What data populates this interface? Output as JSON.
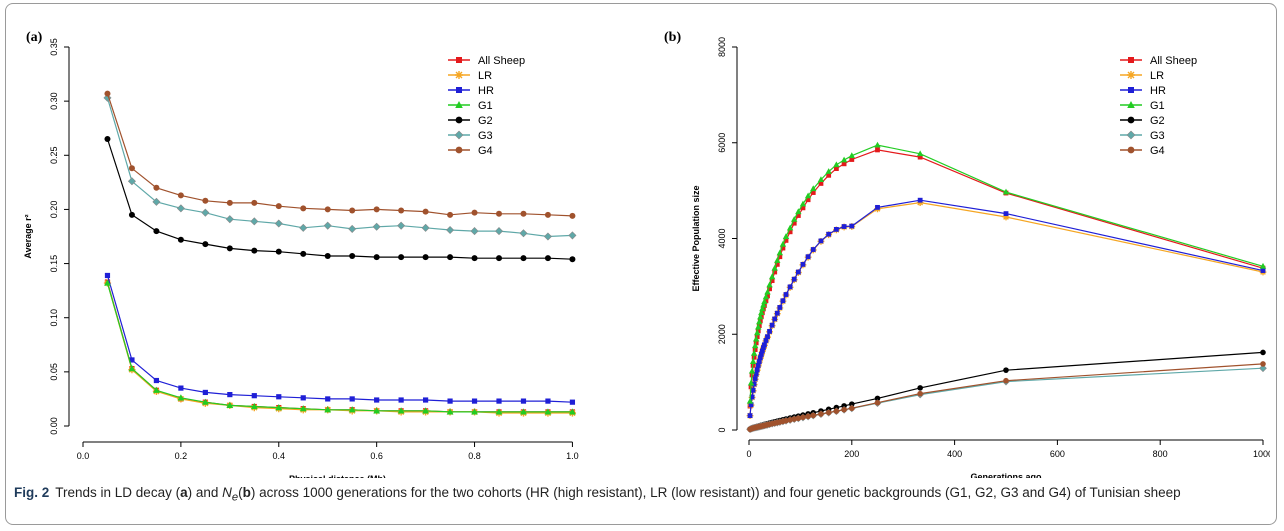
{
  "caption": {
    "fig_label": "Fig. 2",
    "t1": "Trends in LD decay (",
    "a": "a",
    "t2": ") and ",
    "ne_n": "N",
    "ne_e": "e",
    "t3": "(",
    "b": "b",
    "t4": ") across 1000 generations for the two cohorts (HR (high resistant), LR (low resistant)) and four genetic backgrounds (G1, G2, G3 and G4) of Tunisian sheep"
  },
  "chart_data": [
    {
      "panel_label": "(a)",
      "type": "line",
      "xlabel": "Physical distance (Mb)",
      "ylabel": "Average r²",
      "xlim": [
        0,
        1.04
      ],
      "ylim": [
        0,
        0.35
      ],
      "xticks": [
        0.0,
        0.2,
        0.4,
        0.6,
        0.8,
        1.0
      ],
      "xtick_labels": [
        "0.0",
        "0.2",
        "0.4",
        "0.6",
        "0.8",
        "1.0"
      ],
      "yticks": [
        0.0,
        0.05,
        0.1,
        0.15,
        0.2,
        0.25,
        0.3,
        0.35
      ],
      "ytick_labels": [
        "0.00",
        "0.05",
        "0.10",
        "0.15",
        "0.20",
        "0.25",
        "0.30",
        "0.35"
      ],
      "legend_position": "top-right",
      "x": [
        0.05,
        0.1,
        0.15,
        0.2,
        0.25,
        0.3,
        0.35,
        0.4,
        0.45,
        0.5,
        0.55,
        0.6,
        0.65,
        0.7,
        0.75,
        0.8,
        0.85,
        0.9,
        0.95,
        1.0
      ],
      "series": [
        {
          "name": "All Sheep",
          "color": "#e41a1c",
          "marker": "square",
          "values": [
            0.133,
            0.053,
            0.033,
            0.025,
            0.022,
            0.019,
            0.018,
            0.017,
            0.016,
            0.015,
            0.015,
            0.014,
            0.014,
            0.014,
            0.013,
            0.013,
            0.013,
            0.013,
            0.013,
            0.013
          ]
        },
        {
          "name": "LR",
          "color": "#f5a623",
          "marker": "star",
          "values": [
            0.132,
            0.052,
            0.032,
            0.025,
            0.021,
            0.019,
            0.017,
            0.016,
            0.015,
            0.015,
            0.014,
            0.014,
            0.013,
            0.013,
            0.013,
            0.013,
            0.012,
            0.012,
            0.012,
            0.012
          ]
        },
        {
          "name": "HR",
          "color": "#1f1fd6",
          "marker": "square",
          "values": [
            0.139,
            0.061,
            0.042,
            0.035,
            0.031,
            0.029,
            0.028,
            0.027,
            0.026,
            0.025,
            0.025,
            0.024,
            0.024,
            0.024,
            0.023,
            0.023,
            0.023,
            0.023,
            0.023,
            0.022
          ]
        },
        {
          "name": "G1",
          "color": "#22cc22",
          "marker": "triangle",
          "values": [
            0.132,
            0.053,
            0.033,
            0.026,
            0.022,
            0.019,
            0.018,
            0.017,
            0.016,
            0.015,
            0.015,
            0.014,
            0.014,
            0.014,
            0.013,
            0.013,
            0.013,
            0.013,
            0.013,
            0.013
          ]
        },
        {
          "name": "G2",
          "color": "#000000",
          "marker": "circle",
          "values": [
            0.265,
            0.195,
            0.18,
            0.172,
            0.168,
            0.164,
            0.162,
            0.161,
            0.159,
            0.157,
            0.157,
            0.156,
            0.156,
            0.156,
            0.156,
            0.155,
            0.155,
            0.155,
            0.155,
            0.154
          ]
        },
        {
          "name": "G3",
          "color": "#5fa8a8",
          "marker": "diamond",
          "values": [
            0.303,
            0.226,
            0.207,
            0.201,
            0.197,
            0.191,
            0.189,
            0.187,
            0.183,
            0.185,
            0.182,
            0.184,
            0.185,
            0.183,
            0.181,
            0.18,
            0.18,
            0.178,
            0.175,
            0.176
          ]
        },
        {
          "name": "G4",
          "color": "#a0522d",
          "marker": "circle",
          "values": [
            0.307,
            0.238,
            0.22,
            0.213,
            0.208,
            0.206,
            0.206,
            0.203,
            0.201,
            0.2,
            0.199,
            0.2,
            0.199,
            0.198,
            0.195,
            0.197,
            0.196,
            0.196,
            0.195,
            0.194
          ]
        }
      ]
    },
    {
      "panel_label": "(b)",
      "type": "line",
      "xlabel": "Generations ago",
      "ylabel": "Effective Population size",
      "xlim": [
        0,
        1000
      ],
      "ylim": [
        0,
        8000
      ],
      "xticks": [
        0,
        200,
        400,
        600,
        800,
        1000
      ],
      "xtick_labels": [
        "0",
        "200",
        "400",
        "600",
        "800",
        "1000"
      ],
      "yticks": [
        0,
        2000,
        4000,
        6000,
        8000
      ],
      "ytick_labels": [
        "0",
        "2000",
        "4000",
        "6000",
        "8000"
      ],
      "legend_position": "top-right",
      "series": [
        {
          "name": "All Sheep",
          "color": "#e41a1c",
          "marker": "square",
          "x": [
            2,
            4,
            6,
            8,
            10,
            12,
            14,
            16,
            18,
            20,
            22,
            24,
            26,
            28,
            30,
            33,
            36,
            40,
            45,
            50,
            55,
            60,
            66,
            72,
            80,
            88,
            96,
            105,
            115,
            125,
            140,
            155,
            170,
            185,
            200,
            250,
            333,
            500,
            1000
          ],
          "values": [
            500,
            900,
            1150,
            1350,
            1520,
            1680,
            1820,
            1950,
            2070,
            2180,
            2280,
            2370,
            2450,
            2530,
            2600,
            2700,
            2800,
            2950,
            3120,
            3300,
            3460,
            3620,
            3800,
            3960,
            4140,
            4320,
            4480,
            4640,
            4810,
            4960,
            5150,
            5320,
            5460,
            5560,
            5650,
            5850,
            5700,
            4950,
            3380
          ]
        },
        {
          "name": "LR",
          "color": "#f5a623",
          "marker": "star",
          "x": [
            2,
            4,
            6,
            8,
            10,
            12,
            14,
            16,
            18,
            20,
            22,
            24,
            26,
            28,
            30,
            33,
            36,
            40,
            45,
            50,
            55,
            60,
            66,
            72,
            80,
            88,
            96,
            105,
            115,
            125,
            140,
            155,
            170,
            185,
            200,
            250,
            333,
            500,
            1000
          ],
          "values": [
            300,
            520,
            680,
            820,
            950,
            1060,
            1160,
            1250,
            1340,
            1420,
            1500,
            1570,
            1640,
            1710,
            1770,
            1860,
            1940,
            2050,
            2180,
            2310,
            2430,
            2550,
            2690,
            2820,
            2980,
            3140,
            3290,
            3450,
            3610,
            3760,
            3940,
            4080,
            4180,
            4240,
            4250,
            4620,
            4750,
            4450,
            3300
          ]
        },
        {
          "name": "HR",
          "color": "#1f1fd6",
          "marker": "square",
          "x": [
            2,
            4,
            6,
            8,
            10,
            12,
            14,
            16,
            18,
            20,
            22,
            24,
            26,
            28,
            30,
            33,
            36,
            40,
            45,
            50,
            55,
            60,
            66,
            72,
            80,
            88,
            96,
            105,
            115,
            125,
            140,
            155,
            170,
            185,
            200,
            250,
            333,
            500,
            1000
          ],
          "values": [
            300,
            530,
            690,
            830,
            960,
            1070,
            1170,
            1260,
            1350,
            1430,
            1510,
            1580,
            1650,
            1720,
            1780,
            1870,
            1950,
            2060,
            2190,
            2320,
            2440,
            2560,
            2700,
            2830,
            2990,
            3150,
            3300,
            3460,
            3620,
            3770,
            3950,
            4090,
            4190,
            4250,
            4260,
            4650,
            4800,
            4520,
            3330
          ]
        },
        {
          "name": "G1",
          "color": "#22cc22",
          "marker": "triangle",
          "x": [
            2,
            4,
            6,
            8,
            10,
            12,
            14,
            16,
            18,
            20,
            22,
            24,
            26,
            28,
            30,
            33,
            36,
            40,
            45,
            50,
            55,
            60,
            66,
            72,
            80,
            88,
            96,
            105,
            115,
            125,
            140,
            155,
            170,
            185,
            200,
            250,
            333,
            500,
            1000
          ],
          "values": [
            600,
            980,
            1230,
            1430,
            1600,
            1760,
            1900,
            2030,
            2150,
            2260,
            2360,
            2450,
            2530,
            2610,
            2680,
            2780,
            2880,
            3030,
            3200,
            3380,
            3540,
            3700,
            3880,
            4040,
            4220,
            4400,
            4560,
            4720,
            4890,
            5040,
            5230,
            5400,
            5540,
            5640,
            5730,
            5950,
            5770,
            4970,
            3420
          ]
        },
        {
          "name": "G2",
          "color": "#000000",
          "marker": "circle",
          "x": [
            2,
            4,
            6,
            8,
            10,
            12,
            14,
            16,
            18,
            20,
            22,
            24,
            26,
            28,
            30,
            33,
            36,
            40,
            45,
            50,
            55,
            60,
            66,
            72,
            80,
            88,
            96,
            105,
            115,
            125,
            140,
            155,
            170,
            185,
            200,
            250,
            333,
            500,
            1000
          ],
          "values": [
            20,
            30,
            40,
            50,
            55,
            62,
            68,
            74,
            80,
            86,
            92,
            98,
            104,
            110,
            116,
            124,
            132,
            144,
            158,
            172,
            185,
            198,
            214,
            230,
            250,
            270,
            290,
            312,
            336,
            360,
            396,
            432,
            468,
            504,
            540,
            660,
            880,
            1250,
            1620
          ]
        },
        {
          "name": "G3",
          "color": "#5fa8a8",
          "marker": "diamond",
          "x": [
            2,
            4,
            6,
            8,
            10,
            12,
            14,
            16,
            18,
            20,
            22,
            24,
            26,
            28,
            30,
            33,
            36,
            40,
            45,
            50,
            55,
            60,
            66,
            72,
            80,
            88,
            96,
            105,
            115,
            125,
            140,
            155,
            170,
            185,
            200,
            250,
            333,
            500,
            1000
          ],
          "values": [
            15,
            25,
            32,
            40,
            45,
            50,
            55,
            60,
            65,
            70,
            75,
            80,
            85,
            90,
            95,
            102,
            109,
            119,
            131,
            143,
            154,
            165,
            179,
            192,
            209,
            226,
            243,
            261,
            281,
            301,
            331,
            361,
            391,
            421,
            451,
            560,
            740,
            1010,
            1290
          ]
        },
        {
          "name": "G4",
          "color": "#a0522d",
          "marker": "circle",
          "x": [
            2,
            4,
            6,
            8,
            10,
            12,
            14,
            16,
            18,
            20,
            22,
            24,
            26,
            28,
            30,
            33,
            36,
            40,
            45,
            50,
            55,
            60,
            66,
            72,
            80,
            88,
            96,
            105,
            115,
            125,
            140,
            155,
            170,
            185,
            200,
            250,
            333,
            500,
            1000
          ],
          "values": [
            15,
            25,
            32,
            40,
            46,
            51,
            56,
            61,
            66,
            71,
            76,
            81,
            86,
            91,
            96,
            103,
            110,
            120,
            132,
            144,
            155,
            167,
            181,
            195,
            212,
            229,
            246,
            265,
            285,
            305,
            335,
            365,
            395,
            425,
            455,
            570,
            760,
            1030,
            1380
          ]
        }
      ]
    }
  ]
}
